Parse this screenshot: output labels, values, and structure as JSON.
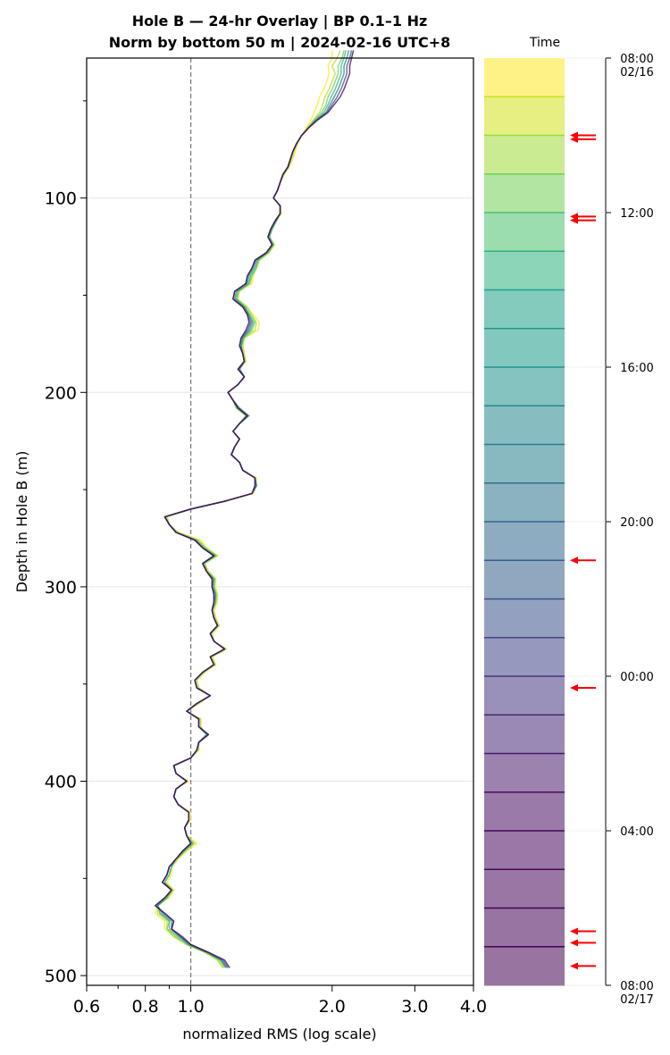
{
  "chart_data": {
    "type": "line",
    "title_line1": "Hole B — 24-hr Overlay  |  BP 0.1–1 Hz",
    "title_line2": "Norm by bottom 50 m  |  2024-02-16 UTC+8",
    "xlabel": "normalized RMS  (log scale)",
    "ylabel": "Depth in Hole B (m)",
    "x_scale": "log",
    "xlim": [
      0.6,
      4.0
    ],
    "ylim": [
      505,
      28
    ],
    "y_inverted": true,
    "grid": true,
    "x_ticks": [
      {
        "value": 0.6,
        "label": "0.6"
      },
      {
        "value": 0.8,
        "label": "0.8"
      },
      {
        "value": 1.0,
        "label": "1.0"
      },
      {
        "value": 2.0,
        "label": "2.0"
      },
      {
        "value": 3.0,
        "label": "3.0"
      },
      {
        "value": 4.0,
        "label": "4.0"
      }
    ],
    "x_minor_ticks": [
      0.7,
      0.9
    ],
    "y_ticks": [
      {
        "value": 100,
        "label": "100"
      },
      {
        "value": 200,
        "label": "200"
      },
      {
        "value": 300,
        "label": "300"
      },
      {
        "value": 400,
        "label": "400"
      },
      {
        "value": 500,
        "label": "500"
      }
    ],
    "y_minor_ticks": [
      50,
      150,
      250,
      350,
      450
    ],
    "reference_line_x": 1.0,
    "depths": [
      24,
      28,
      32,
      36,
      40,
      44,
      48,
      52,
      56,
      60,
      64,
      68,
      72,
      76,
      80,
      84,
      88,
      92,
      96,
      100,
      104,
      108,
      112,
      116,
      120,
      124,
      128,
      132,
      136,
      140,
      144,
      148,
      152,
      156,
      160,
      164,
      168,
      172,
      176,
      180,
      184,
      188,
      192,
      196,
      200,
      204,
      208,
      212,
      216,
      220,
      224,
      228,
      232,
      236,
      240,
      244,
      248,
      252,
      256,
      260,
      264,
      268,
      272,
      276,
      280,
      284,
      288,
      292,
      296,
      300,
      304,
      308,
      312,
      316,
      320,
      324,
      328,
      332,
      336,
      340,
      344,
      348,
      352,
      356,
      360,
      364,
      368,
      372,
      376,
      380,
      384,
      388,
      392,
      396,
      400,
      404,
      408,
      412,
      416,
      420,
      424,
      428,
      432,
      436,
      440,
      444,
      448,
      452,
      456,
      460,
      464,
      468,
      472,
      476,
      480,
      484,
      488,
      492,
      496
    ],
    "series": [
      {
        "time": "08:00",
        "color": "#fde725",
        "values": [
          2.0,
          2.0,
          1.96,
          1.97,
          1.95,
          1.92,
          1.88,
          1.86,
          1.83,
          1.8,
          1.76,
          1.72,
          1.69,
          1.67,
          1.65,
          1.62,
          1.58,
          1.55,
          1.53,
          1.5,
          1.55,
          1.56,
          1.52,
          1.49,
          1.47,
          1.51,
          1.47,
          1.4,
          1.38,
          1.36,
          1.35,
          1.26,
          1.25,
          1.31,
          1.36,
          1.4,
          1.39,
          1.3,
          1.29,
          1.3,
          1.31,
          1.27,
          1.3,
          1.26,
          1.2,
          1.23,
          1.25,
          1.32,
          1.27,
          1.23,
          1.27,
          1.24,
          1.22,
          1.27,
          1.29,
          1.38,
          1.38,
          1.36,
          1.19,
          1.0,
          0.89,
          0.9,
          0.94,
          1.05,
          1.08,
          1.14,
          1.07,
          1.09,
          1.13,
          1.13,
          1.14,
          1.14,
          1.12,
          1.13,
          1.15,
          1.11,
          1.12,
          1.19,
          1.11,
          1.13,
          1.07,
          1.03,
          1.04,
          1.1,
          1.04,
          0.98,
          1.05,
          1.05,
          1.08,
          1.04,
          1.04,
          1.0,
          0.92,
          0.93,
          0.99,
          0.93,
          0.92,
          0.94,
          1.0,
          1.0,
          0.97,
          0.98,
          1.03,
          0.98,
          0.94,
          0.91,
          0.91,
          0.89,
          0.92,
          0.9,
          0.85,
          0.84,
          0.88,
          0.88,
          0.92,
          0.98,
          1.07,
          1.14,
          1.17
        ]
      },
      {
        "time": "10:00",
        "color": "#b5de2b",
        "values": [
          2.08,
          2.05,
          2.0,
          2.03,
          2.0,
          1.97,
          1.93,
          1.91,
          1.88,
          1.82,
          1.77,
          1.72,
          1.68,
          1.66,
          1.64,
          1.62,
          1.58,
          1.55,
          1.53,
          1.5,
          1.55,
          1.55,
          1.52,
          1.49,
          1.47,
          1.5,
          1.47,
          1.4,
          1.38,
          1.35,
          1.34,
          1.27,
          1.26,
          1.32,
          1.35,
          1.38,
          1.37,
          1.3,
          1.29,
          1.3,
          1.31,
          1.27,
          1.3,
          1.26,
          1.2,
          1.23,
          1.25,
          1.31,
          1.27,
          1.23,
          1.27,
          1.24,
          1.22,
          1.27,
          1.29,
          1.37,
          1.38,
          1.35,
          1.18,
          1.0,
          0.89,
          0.9,
          0.94,
          1.04,
          1.08,
          1.14,
          1.07,
          1.09,
          1.13,
          1.12,
          1.14,
          1.13,
          1.12,
          1.13,
          1.15,
          1.11,
          1.12,
          1.19,
          1.11,
          1.13,
          1.07,
          1.03,
          1.04,
          1.1,
          1.04,
          0.98,
          1.05,
          1.05,
          1.08,
          1.04,
          1.04,
          1.0,
          0.92,
          0.93,
          0.98,
          0.93,
          0.92,
          0.94,
          0.99,
          0.99,
          0.97,
          0.98,
          1.02,
          0.97,
          0.94,
          0.91,
          0.9,
          0.88,
          0.92,
          0.89,
          0.85,
          0.85,
          0.89,
          0.89,
          0.92,
          0.98,
          1.07,
          1.14,
          1.17
        ]
      },
      {
        "time": "12:00",
        "color": "#6ece58",
        "values": [
          2.12,
          2.1,
          2.06,
          2.06,
          2.03,
          2.0,
          1.96,
          1.94,
          1.9,
          1.83,
          1.78,
          1.72,
          1.68,
          1.65,
          1.63,
          1.61,
          1.57,
          1.55,
          1.53,
          1.5,
          1.55,
          1.55,
          1.52,
          1.49,
          1.47,
          1.5,
          1.46,
          1.39,
          1.38,
          1.35,
          1.33,
          1.26,
          1.25,
          1.31,
          1.34,
          1.37,
          1.35,
          1.3,
          1.28,
          1.29,
          1.3,
          1.27,
          1.3,
          1.26,
          1.2,
          1.23,
          1.25,
          1.31,
          1.27,
          1.23,
          1.27,
          1.24,
          1.22,
          1.27,
          1.29,
          1.37,
          1.38,
          1.35,
          1.18,
          1.0,
          0.88,
          0.9,
          0.93,
          1.03,
          1.07,
          1.13,
          1.07,
          1.08,
          1.12,
          1.12,
          1.13,
          1.13,
          1.11,
          1.12,
          1.14,
          1.1,
          1.12,
          1.18,
          1.1,
          1.12,
          1.06,
          1.02,
          1.03,
          1.1,
          1.03,
          0.98,
          1.04,
          1.04,
          1.08,
          1.04,
          1.03,
          1.0,
          0.92,
          0.93,
          0.98,
          0.93,
          0.92,
          0.94,
          0.99,
          0.99,
          0.97,
          0.98,
          1.01,
          0.97,
          0.93,
          0.91,
          0.9,
          0.88,
          0.91,
          0.89,
          0.85,
          0.86,
          0.9,
          0.89,
          0.93,
          0.98,
          1.08,
          1.15,
          1.18
        ]
      },
      {
        "time": "16:00",
        "color": "#35b779",
        "values": [
          2.14,
          2.12,
          2.09,
          2.09,
          2.06,
          2.03,
          1.99,
          1.96,
          1.92,
          1.84,
          1.78,
          1.72,
          1.68,
          1.65,
          1.63,
          1.61,
          1.57,
          1.55,
          1.53,
          1.5,
          1.55,
          1.55,
          1.52,
          1.49,
          1.47,
          1.5,
          1.46,
          1.39,
          1.37,
          1.34,
          1.33,
          1.26,
          1.25,
          1.3,
          1.33,
          1.36,
          1.34,
          1.29,
          1.28,
          1.29,
          1.3,
          1.27,
          1.3,
          1.26,
          1.2,
          1.23,
          1.26,
          1.32,
          1.27,
          1.23,
          1.27,
          1.24,
          1.22,
          1.27,
          1.29,
          1.37,
          1.38,
          1.35,
          1.18,
          1.0,
          0.88,
          0.9,
          0.93,
          1.03,
          1.07,
          1.13,
          1.06,
          1.08,
          1.12,
          1.12,
          1.13,
          1.13,
          1.11,
          1.12,
          1.14,
          1.1,
          1.12,
          1.18,
          1.1,
          1.12,
          1.06,
          1.02,
          1.03,
          1.1,
          1.03,
          0.98,
          1.04,
          1.04,
          1.08,
          1.04,
          1.03,
          1.0,
          0.92,
          0.93,
          0.98,
          0.93,
          0.92,
          0.94,
          0.99,
          0.99,
          0.97,
          0.98,
          1.01,
          0.97,
          0.93,
          0.91,
          0.9,
          0.88,
          0.91,
          0.89,
          0.85,
          0.86,
          0.9,
          0.9,
          0.94,
          0.99,
          1.08,
          1.16,
          1.19
        ]
      },
      {
        "time": "20:00",
        "color": "#26828e",
        "values": [
          2.17,
          2.15,
          2.12,
          2.12,
          2.09,
          2.06,
          2.02,
          1.98,
          1.94,
          1.85,
          1.78,
          1.72,
          1.68,
          1.65,
          1.63,
          1.61,
          1.57,
          1.55,
          1.53,
          1.5,
          1.55,
          1.55,
          1.51,
          1.48,
          1.46,
          1.49,
          1.45,
          1.38,
          1.36,
          1.33,
          1.32,
          1.25,
          1.24,
          1.3,
          1.33,
          1.35,
          1.33,
          1.29,
          1.28,
          1.29,
          1.3,
          1.27,
          1.3,
          1.26,
          1.2,
          1.23,
          1.27,
          1.33,
          1.27,
          1.23,
          1.27,
          1.24,
          1.22,
          1.27,
          1.29,
          1.37,
          1.38,
          1.35,
          1.18,
          1.0,
          0.88,
          0.9,
          0.93,
          1.02,
          1.06,
          1.12,
          1.06,
          1.08,
          1.12,
          1.11,
          1.13,
          1.12,
          1.11,
          1.12,
          1.14,
          1.1,
          1.12,
          1.18,
          1.1,
          1.12,
          1.06,
          1.02,
          1.03,
          1.1,
          1.03,
          0.98,
          1.04,
          1.04,
          1.09,
          1.04,
          1.03,
          1.0,
          0.92,
          0.93,
          0.98,
          0.93,
          0.92,
          0.94,
          0.99,
          0.99,
          0.97,
          0.98,
          1.0,
          0.96,
          0.93,
          0.9,
          0.89,
          0.87,
          0.91,
          0.88,
          0.85,
          0.87,
          0.91,
          0.91,
          0.95,
          0.99,
          1.08,
          1.16,
          1.19
        ]
      },
      {
        "time": "00:00",
        "color": "#3e4989",
        "values": [
          2.2,
          2.18,
          2.15,
          2.15,
          2.12,
          2.09,
          2.05,
          2.0,
          1.95,
          1.85,
          1.78,
          1.72,
          1.68,
          1.65,
          1.63,
          1.61,
          1.57,
          1.55,
          1.53,
          1.5,
          1.55,
          1.55,
          1.51,
          1.48,
          1.46,
          1.49,
          1.45,
          1.37,
          1.35,
          1.32,
          1.31,
          1.24,
          1.23,
          1.29,
          1.32,
          1.34,
          1.32,
          1.28,
          1.27,
          1.29,
          1.3,
          1.26,
          1.3,
          1.26,
          1.2,
          1.23,
          1.26,
          1.32,
          1.27,
          1.23,
          1.27,
          1.24,
          1.22,
          1.27,
          1.29,
          1.37,
          1.37,
          1.35,
          1.18,
          1.0,
          0.88,
          0.9,
          0.93,
          1.02,
          1.06,
          1.12,
          1.06,
          1.08,
          1.11,
          1.11,
          1.12,
          1.12,
          1.11,
          1.12,
          1.14,
          1.1,
          1.12,
          1.18,
          1.1,
          1.12,
          1.06,
          1.02,
          1.03,
          1.1,
          1.03,
          0.98,
          1.04,
          1.04,
          1.09,
          1.04,
          1.03,
          1.0,
          0.92,
          0.93,
          0.98,
          0.93,
          0.92,
          0.94,
          0.99,
          0.99,
          0.97,
          0.98,
          1.0,
          0.96,
          0.93,
          0.9,
          0.89,
          0.87,
          0.91,
          0.88,
          0.84,
          0.88,
          0.92,
          0.91,
          0.95,
          1.0,
          1.09,
          1.17,
          1.2
        ]
      },
      {
        "time": "06:00",
        "color": "#440154",
        "values": [
          2.22,
          2.2,
          2.18,
          2.18,
          2.15,
          2.12,
          2.08,
          2.02,
          1.96,
          1.86,
          1.78,
          1.72,
          1.68,
          1.65,
          1.63,
          1.61,
          1.57,
          1.55,
          1.53,
          1.5,
          1.55,
          1.55,
          1.51,
          1.48,
          1.46,
          1.49,
          1.45,
          1.37,
          1.35,
          1.32,
          1.31,
          1.24,
          1.23,
          1.29,
          1.32,
          1.33,
          1.31,
          1.28,
          1.27,
          1.29,
          1.3,
          1.26,
          1.3,
          1.26,
          1.2,
          1.23,
          1.26,
          1.32,
          1.27,
          1.23,
          1.27,
          1.24,
          1.22,
          1.27,
          1.29,
          1.37,
          1.37,
          1.35,
          1.18,
          1.0,
          0.88,
          0.9,
          0.93,
          1.02,
          1.06,
          1.12,
          1.06,
          1.08,
          1.11,
          1.11,
          1.12,
          1.12,
          1.11,
          1.12,
          1.14,
          1.1,
          1.12,
          1.18,
          1.1,
          1.12,
          1.06,
          1.02,
          1.03,
          1.1,
          1.03,
          0.98,
          1.04,
          1.04,
          1.09,
          1.04,
          1.03,
          1.0,
          0.92,
          0.93,
          0.98,
          0.93,
          0.92,
          0.94,
          0.99,
          0.99,
          0.97,
          0.98,
          1.0,
          0.96,
          0.93,
          0.9,
          0.89,
          0.87,
          0.91,
          0.88,
          0.84,
          0.88,
          0.92,
          0.91,
          0.96,
          1.0,
          1.09,
          1.18,
          1.21
        ]
      }
    ],
    "colorbar": {
      "label": "Time",
      "n_bands": 24,
      "colors_top_to_bottom": [
        "#fde725",
        "#d0e11c",
        "#a0da39",
        "#73d056",
        "#4ac16d",
        "#2db27d",
        "#1fa187",
        "#1e9b8a",
        "#21918c",
        "#24878e",
        "#277f8e",
        "#2c728e",
        "#31688e",
        "#355e8d",
        "#3b528b",
        "#414487",
        "#453781",
        "#482878",
        "#481b6d",
        "#470d60",
        "#46085c",
        "#450559",
        "#440256",
        "#440154"
      ],
      "ticks": [
        {
          "position": 0,
          "label": "08:00",
          "sublabel": "02/16"
        },
        {
          "position": 4,
          "label": "12:00",
          "sublabel": ""
        },
        {
          "position": 8,
          "label": "16:00",
          "sublabel": ""
        },
        {
          "position": 12,
          "label": "20:00",
          "sublabel": ""
        },
        {
          "position": 16,
          "label": "00:00",
          "sublabel": ""
        },
        {
          "position": 20,
          "label": "04:00",
          "sublabel": ""
        },
        {
          "position": 24,
          "label": "08:00",
          "sublabel": "02/17"
        }
      ],
      "marker_color": "#ff0000",
      "marker_hours": [
        2.0,
        2.1,
        4.1,
        4.2,
        13.0,
        16.3,
        22.6,
        22.9,
        23.5
      ]
    }
  }
}
